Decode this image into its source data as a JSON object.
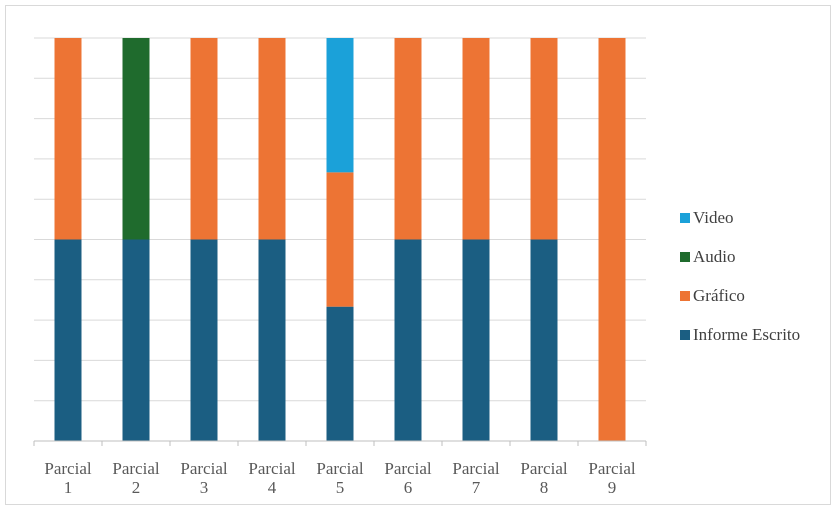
{
  "chart_data": {
    "type": "bar",
    "stacked": true,
    "normalized": true,
    "categories": [
      [
        "Parcial",
        "1"
      ],
      [
        "Parcial",
        "2"
      ],
      [
        "Parcial",
        "3"
      ],
      [
        "Parcial",
        "4"
      ],
      [
        "Parcial",
        "5"
      ],
      [
        "Parcial",
        "6"
      ],
      [
        "Parcial",
        "7"
      ],
      [
        "Parcial",
        "8"
      ],
      [
        "Parcial",
        "9"
      ]
    ],
    "series": [
      {
        "name": "Informe Escrito",
        "color": "#1b5e82",
        "values": [
          1,
          1,
          1,
          1,
          1,
          1,
          1,
          1,
          0
        ]
      },
      {
        "name": "Gráfico",
        "color": "#ed7434",
        "values": [
          1,
          0,
          1,
          1,
          1,
          1,
          1,
          1,
          1
        ]
      },
      {
        "name": "Audio",
        "color": "#1f6b2d",
        "values": [
          0,
          1,
          0,
          0,
          0,
          0,
          0,
          0,
          0
        ]
      },
      {
        "name": "Video",
        "color": "#1ba1d9",
        "values": [
          0,
          0,
          0,
          0,
          1,
          0,
          0,
          0,
          0
        ]
      }
    ],
    "legend_order": [
      "Video",
      "Audio",
      "Gráfico",
      "Informe Escrito"
    ],
    "ylim": [
      0,
      1
    ],
    "grid": true,
    "legend_position": "right",
    "title": "",
    "xlabel": "",
    "ylabel": ""
  }
}
